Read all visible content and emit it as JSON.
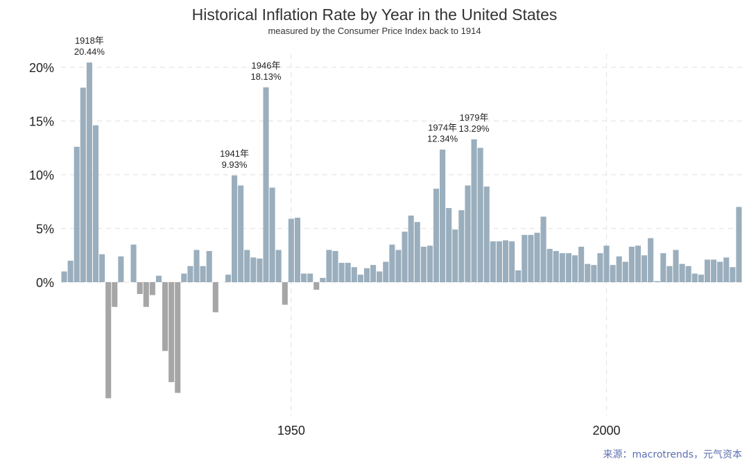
{
  "chart_data": {
    "type": "bar",
    "title": "Historical Inflation Rate by Year in the United States",
    "subtitle": "measured by the Consumer Price Index back to 1914",
    "source": "来源：macrotrends，元气资本",
    "y_tick_labels": [
      "20%",
      "15%",
      "10%",
      "5%",
      "0%"
    ],
    "y_tick_values": [
      20,
      15,
      10,
      5,
      0
    ],
    "x_tick_labels": [
      "1950",
      "2000"
    ],
    "x_tick_values": [
      1950,
      2000
    ],
    "xlim": [
      1913.5,
      2021.5
    ],
    "ylim": [
      -12.5,
      21.5
    ],
    "grid": true,
    "colors": {
      "positive": "#9aaebd",
      "negative": "#a6a6a6",
      "grid": "#e5e5e5",
      "text": "#222222"
    },
    "x": [
      1914,
      1915,
      1916,
      1917,
      1918,
      1919,
      1920,
      1921,
      1922,
      1923,
      1924,
      1925,
      1926,
      1927,
      1928,
      1929,
      1930,
      1931,
      1932,
      1933,
      1934,
      1935,
      1936,
      1937,
      1938,
      1939,
      1940,
      1941,
      1942,
      1943,
      1944,
      1945,
      1946,
      1947,
      1948,
      1949,
      1950,
      1951,
      1952,
      1953,
      1954,
      1955,
      1956,
      1957,
      1958,
      1959,
      1960,
      1961,
      1962,
      1963,
      1964,
      1965,
      1966,
      1967,
      1968,
      1969,
      1970,
      1971,
      1972,
      1973,
      1974,
      1975,
      1976,
      1977,
      1978,
      1979,
      1980,
      1981,
      1982,
      1983,
      1984,
      1985,
      1986,
      1987,
      1988,
      1989,
      1990,
      1991,
      1992,
      1993,
      1994,
      1995,
      1996,
      1997,
      1998,
      1999,
      2000,
      2001,
      2002,
      2003,
      2004,
      2005,
      2006,
      2007,
      2008,
      2009,
      2010,
      2011,
      2012,
      2013,
      2014,
      2015,
      2016,
      2017,
      2018,
      2019,
      2020,
      2021
    ],
    "values": [
      1.0,
      2.0,
      12.6,
      18.1,
      20.44,
      14.6,
      2.6,
      -10.8,
      -2.3,
      2.4,
      0.0,
      3.5,
      -1.1,
      -2.3,
      -1.2,
      0.6,
      -6.4,
      -9.3,
      -10.3,
      0.8,
      1.5,
      3.0,
      1.5,
      2.9,
      -2.8,
      0.0,
      0.7,
      9.93,
      9.0,
      3.0,
      2.3,
      2.2,
      18.13,
      8.8,
      3.0,
      -2.1,
      5.9,
      6.0,
      0.8,
      0.8,
      -0.7,
      0.4,
      3.0,
      2.9,
      1.8,
      1.8,
      1.4,
      0.7,
      1.3,
      1.6,
      1.0,
      1.9,
      3.5,
      3.0,
      4.7,
      6.2,
      5.6,
      3.3,
      3.4,
      8.7,
      12.34,
      6.9,
      4.9,
      6.7,
      9.0,
      13.29,
      12.5,
      8.9,
      3.8,
      3.8,
      3.9,
      3.8,
      1.1,
      4.4,
      4.4,
      4.6,
      6.1,
      3.1,
      2.9,
      2.7,
      2.7,
      2.5,
      3.3,
      1.7,
      1.6,
      2.7,
      3.4,
      1.6,
      2.4,
      1.9,
      3.3,
      3.4,
      2.5,
      4.1,
      0.1,
      2.7,
      1.5,
      3.0,
      1.7,
      1.5,
      0.8,
      0.7,
      2.1,
      2.1,
      1.9,
      2.3,
      1.4,
      7.0
    ],
    "annotations": [
      {
        "year": 1918,
        "label": "1918年",
        "value_label": "20.44%"
      },
      {
        "year": 1941,
        "label": "1941年",
        "value_label": "9.93%"
      },
      {
        "year": 1946,
        "label": "1946年",
        "value_label": "18.13%"
      },
      {
        "year": 1974,
        "label": "1974年",
        "value_label": "12.34%"
      },
      {
        "year": 1979,
        "label": "1979年",
        "value_label": "13.29%"
      }
    ]
  }
}
